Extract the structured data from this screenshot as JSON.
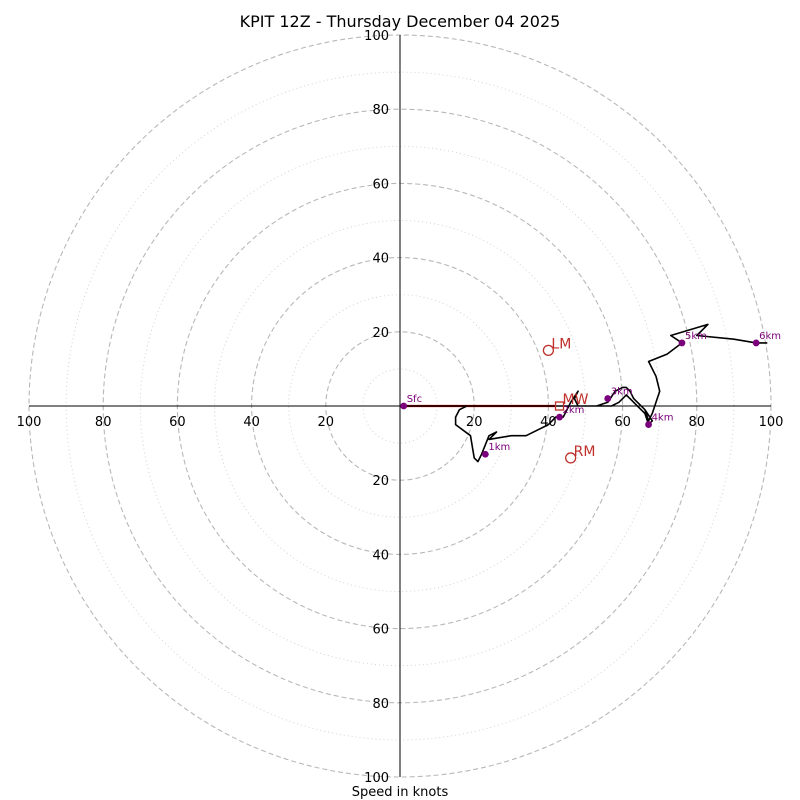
{
  "chart_data": {
    "type": "hodograph",
    "title": "KPIT 12Z - Thursday December 04 2025",
    "xlabel": "Speed in knots",
    "ylabel": "",
    "range_knots": [
      -100,
      100
    ],
    "ring_major_step": 20,
    "ring_minor_step": 10,
    "tick_values": [
      20,
      40,
      60,
      80,
      100
    ],
    "hodograph_trace": [
      [
        0,
        0
      ],
      [
        15,
        0
      ],
      [
        30,
        0
      ],
      [
        42,
        0
      ],
      [
        50,
        0
      ],
      [
        53,
        0
      ],
      [
        56,
        1
      ],
      [
        58,
        4
      ],
      [
        60,
        5
      ],
      [
        61,
        5
      ],
      [
        62,
        4
      ],
      [
        63,
        2
      ],
      [
        66,
        -1
      ],
      [
        68,
        -4
      ],
      [
        67,
        -5
      ],
      [
        66,
        -2
      ],
      [
        65,
        -1
      ],
      [
        63,
        1
      ],
      [
        61,
        3
      ],
      [
        59,
        1
      ],
      [
        57,
        0
      ],
      [
        55,
        0
      ],
      [
        52,
        0
      ],
      [
        48,
        0
      ],
      [
        47,
        2
      ],
      [
        48,
        4
      ],
      [
        46,
        1
      ],
      [
        44,
        -3
      ],
      [
        42,
        -3
      ],
      [
        40,
        -5
      ],
      [
        38,
        -6
      ],
      [
        34,
        -8
      ],
      [
        32,
        -8
      ],
      [
        30,
        -8
      ],
      [
        24,
        -9
      ],
      [
        26,
        -7
      ],
      [
        24,
        -8
      ],
      [
        22,
        -13
      ],
      [
        21,
        -15
      ],
      [
        20,
        -14
      ],
      [
        19,
        -8
      ],
      [
        15,
        -5
      ],
      [
        15,
        -3
      ],
      [
        16,
        -1
      ],
      [
        18,
        0
      ],
      [
        22,
        0
      ],
      [
        30,
        0
      ],
      [
        40,
        0
      ],
      [
        50,
        0
      ],
      [
        53,
        0
      ],
      [
        56,
        1
      ],
      [
        58,
        4
      ],
      [
        60,
        5
      ],
      [
        61,
        5
      ],
      [
        62,
        4
      ],
      [
        63,
        2
      ],
      [
        66,
        -1
      ],
      [
        67,
        -4
      ],
      [
        68,
        -2
      ],
      [
        69,
        1
      ],
      [
        70,
        4
      ],
      [
        69,
        8
      ],
      [
        67,
        12
      ],
      [
        72,
        14
      ],
      [
        76,
        17
      ],
      [
        73,
        19
      ],
      [
        83,
        22
      ],
      [
        80,
        19
      ],
      [
        90,
        18
      ],
      [
        96,
        17
      ],
      [
        99,
        17
      ]
    ],
    "height_markers": [
      {
        "label": "Sfc",
        "u": 1,
        "v": 0
      },
      {
        "label": "1km",
        "u": 23,
        "v": -13
      },
      {
        "label": "2km",
        "u": 43,
        "v": -3
      },
      {
        "label": "3km",
        "u": 56,
        "v": 2
      },
      {
        "label": "4km",
        "u": 67,
        "v": -5
      },
      {
        "label": "5km",
        "u": 76,
        "v": 17
      },
      {
        "label": "6km",
        "u": 96,
        "v": 17
      }
    ],
    "shear_vector": {
      "from": [
        1,
        0
      ],
      "to": [
        42,
        0
      ],
      "color": "#dd0000"
    },
    "storm_motions": [
      {
        "label": "LM",
        "u": 40,
        "v": 15,
        "marker": "circle"
      },
      {
        "label": "RM",
        "u": 46,
        "v": -14,
        "marker": "circle"
      },
      {
        "label": "MW",
        "u": 43,
        "v": 0,
        "marker": "square"
      }
    ],
    "colors": {
      "rings_major": "#b8b8b8",
      "rings_minor": "#d2d2d2",
      "trace": "#000000",
      "marker": "#7b007b",
      "shear": "#dd0000",
      "storm_motion": "#c0302a"
    }
  }
}
